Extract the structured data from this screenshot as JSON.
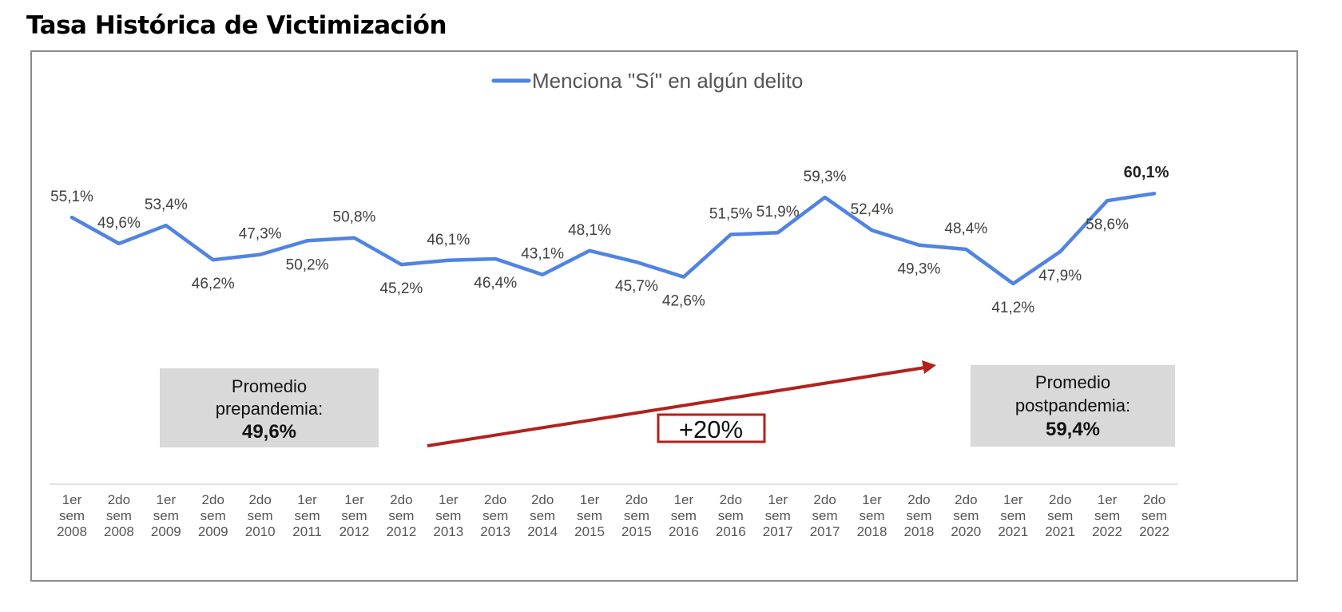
{
  "page": {
    "title": "Tasa Histórica de Victimización"
  },
  "chart_data": {
    "type": "line",
    "title": "Tasa Histórica de Victimización",
    "xlabel": "",
    "ylabel": "",
    "grid": false,
    "legend_position": "top-center",
    "categories": [
      "1er sem 2008",
      "2do sem 2008",
      "1er sem 2009",
      "2do sem 2009",
      "2do sem 2010",
      "1er sem 2011",
      "1er sem 2012",
      "2do sem 2012",
      "1er sem 2013",
      "2do sem 2013",
      "2do sem 2014",
      "1er sem 2015",
      "2do sem 2015",
      "1er sem 2016",
      "2do sem 2016",
      "1er sem 2017",
      "2do sem 2017",
      "1er sem 2018",
      "2do sem 2018",
      "2do sem 2020",
      "1er sem 2021",
      "2do sem 2021",
      "1er sem 2022",
      "2do sem 2022"
    ],
    "category_lines": [
      [
        "1er",
        "sem",
        "2008"
      ],
      [
        "2do",
        "sem",
        "2008"
      ],
      [
        "1er",
        "sem",
        "2009"
      ],
      [
        "2do",
        "sem",
        "2009"
      ],
      [
        "2do",
        "sem",
        "2010"
      ],
      [
        "1er",
        "sem",
        "2011"
      ],
      [
        "1er",
        "sem",
        "2012"
      ],
      [
        "2do",
        "sem",
        "2012"
      ],
      [
        "1er",
        "sem",
        "2013"
      ],
      [
        "2do",
        "sem",
        "2013"
      ],
      [
        "2do",
        "sem",
        "2014"
      ],
      [
        "1er",
        "sem",
        "2015"
      ],
      [
        "2do",
        "sem",
        "2015"
      ],
      [
        "1er",
        "sem",
        "2016"
      ],
      [
        "2do",
        "sem",
        "2016"
      ],
      [
        "1er",
        "sem",
        "2017"
      ],
      [
        "2do",
        "sem",
        "2017"
      ],
      [
        "1er",
        "sem",
        "2018"
      ],
      [
        "2do",
        "sem",
        "2018"
      ],
      [
        "2do",
        "sem",
        "2020"
      ],
      [
        "1er",
        "sem",
        "2021"
      ],
      [
        "2do",
        "sem",
        "2021"
      ],
      [
        "1er",
        "sem",
        "2022"
      ],
      [
        "2do",
        "sem",
        "2022"
      ]
    ],
    "series": [
      {
        "name": "Menciona \"Sí\" en algún delito",
        "color": "#5083e3",
        "values": [
          55.1,
          49.6,
          53.4,
          46.2,
          47.3,
          50.2,
          50.8,
          45.2,
          46.1,
          46.4,
          43.1,
          48.1,
          45.7,
          42.6,
          51.5,
          51.9,
          59.3,
          52.4,
          49.3,
          48.4,
          41.2,
          47.9,
          58.6,
          60.1
        ],
        "labels": [
          "55,1%",
          "49,6%",
          "53,4%",
          "46,2%",
          "47,3%",
          "50,2%",
          "50,8%",
          "45,2%",
          "46,1%",
          "46,4%",
          "43,1%",
          "48,1%",
          "45,7%",
          "42,6%",
          "51,5%",
          "51,9%",
          "59,3%",
          "52,4%",
          "49,3%",
          "48,4%",
          "41,2%",
          "47,9%",
          "58,6%",
          "60,1%"
        ],
        "label_side": [
          "above",
          "above",
          "above",
          "below",
          "above",
          "below",
          "above",
          "below",
          "above",
          "below",
          "above",
          "above",
          "below",
          "below",
          "above",
          "above",
          "above",
          "above",
          "below",
          "above",
          "below",
          "below",
          "below",
          "above"
        ],
        "label_bold": [
          false,
          false,
          false,
          false,
          false,
          false,
          false,
          false,
          false,
          false,
          false,
          false,
          false,
          false,
          false,
          false,
          false,
          false,
          false,
          false,
          false,
          false,
          false,
          true
        ]
      }
    ],
    "annotations": {
      "prepandemia": {
        "line1": "Promedio",
        "line2": "prepandemia:",
        "value": "49,6%"
      },
      "postpandemia": {
        "line1": "Promedio",
        "line2": "postpandemia:",
        "value": "59,4%"
      },
      "change": {
        "text": "+20%",
        "color": "#b3211c"
      },
      "box_color": "#d9d9d9"
    }
  }
}
